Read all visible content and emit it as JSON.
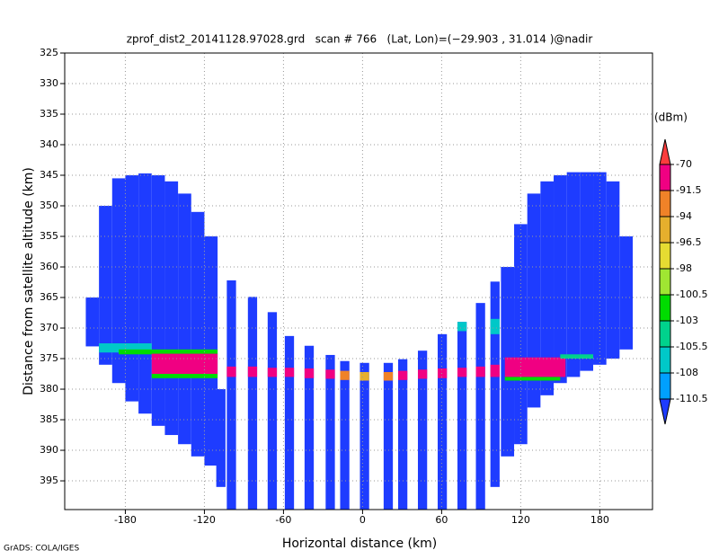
{
  "chart_data": {
    "type": "heatmap",
    "title": "zprof_dist2_20141128.97028.grd   scan # 766   (Lat, Lon)=(−29.903 , 31.014 )@nadir",
    "x_label": "Horizontal distance (km)",
    "y_label": "Distance from satellite altitude (km)",
    "footer": "GrADS: COLA/IGES",
    "xlim": [
      -226,
      220
    ],
    "xticks": [
      -180,
      -120,
      -60,
      0,
      60,
      120,
      180
    ],
    "ylim": [
      325,
      399.7
    ],
    "yticks": [
      325,
      330,
      335,
      340,
      345,
      350,
      355,
      360,
      365,
      370,
      375,
      380,
      385,
      390,
      395
    ],
    "grid": true,
    "colorbar": {
      "label": "(dBm)",
      "levels": [
        -70,
        -91.5,
        -94,
        -96.5,
        -98,
        -100.5,
        -103,
        -105.5,
        -108,
        -110.5
      ],
      "colors": [
        "#fa3c3c",
        "#f00082",
        "#f08228",
        "#e6af2d",
        "#e6dc32",
        "#a0e632",
        "#00dc00",
        "#00d28c",
        "#00c8c8",
        "#00a0ff",
        "#1e3cff"
      ]
    },
    "cells": [
      [
        -210,
        -200,
        365,
        373,
        -112
      ],
      [
        -200,
        -190,
        350,
        376,
        -112
      ],
      [
        -190,
        -180,
        345.5,
        379,
        -112
      ],
      [
        -180,
        -170,
        345,
        382,
        -112
      ],
      [
        -170,
        -160,
        344.7,
        384,
        -112
      ],
      [
        -160,
        -150,
        345,
        386,
        -112
      ],
      [
        -150,
        -140,
        346,
        387.5,
        -112
      ],
      [
        -140,
        -130,
        348,
        389,
        -112
      ],
      [
        -130,
        -120,
        351,
        391,
        -112
      ],
      [
        -120,
        -110,
        355,
        392.5,
        -112
      ],
      [
        -111,
        -104,
        380,
        396,
        -112
      ],
      [
        -103,
        -96,
        362.2,
        399.7,
        -112
      ],
      [
        -87,
        -80,
        364.9,
        399.7,
        -112
      ],
      [
        -72,
        -65,
        367.4,
        399.7,
        -112
      ],
      [
        -59,
        -52,
        371.3,
        399.7,
        -112
      ],
      [
        -44,
        -37,
        372.9,
        399.7,
        -112
      ],
      [
        -28,
        -21,
        374.4,
        399.7,
        -112
      ],
      [
        -17,
        -10,
        375.4,
        399.7,
        -112
      ],
      [
        -2,
        5,
        375.7,
        399.7,
        -112
      ],
      [
        16,
        23,
        375.7,
        399.7,
        -112
      ],
      [
        27,
        34,
        375.1,
        399.7,
        -112
      ],
      [
        42,
        49,
        373.7,
        399.7,
        -112
      ],
      [
        57,
        64,
        371,
        399.7,
        -112
      ],
      [
        72,
        79,
        369,
        399.7,
        -112
      ],
      [
        86,
        93,
        365.9,
        399.7,
        -112
      ],
      [
        97,
        104,
        362.4,
        396,
        -112
      ],
      [
        105,
        115,
        360,
        391,
        -112
      ],
      [
        115,
        125,
        353,
        389,
        -112
      ],
      [
        125,
        135,
        348,
        383,
        -112
      ],
      [
        135,
        145,
        346,
        381,
        -112
      ],
      [
        145,
        155,
        345,
        379,
        -112
      ],
      [
        155,
        165,
        344.5,
        378,
        -112
      ],
      [
        165,
        175,
        344.5,
        377,
        -112
      ],
      [
        175,
        185,
        344.5,
        376,
        -112
      ],
      [
        185,
        195,
        346,
        375,
        -112
      ],
      [
        195,
        205,
        355,
        373.5,
        -112
      ],
      [
        -200,
        -160,
        372.5,
        374,
        -107
      ],
      [
        -185,
        -110,
        373.5,
        374.3,
        -102
      ],
      [
        -160,
        -110,
        374.2,
        377.5,
        -85
      ],
      [
        -160,
        -110,
        377.5,
        378.2,
        -101
      ],
      [
        -103,
        -96,
        376.3,
        378,
        -88
      ],
      [
        -87,
        -80,
        376.3,
        378,
        -88
      ],
      [
        -72,
        -65,
        376.5,
        378,
        -88
      ],
      [
        -59,
        -52,
        376.5,
        378,
        -88
      ],
      [
        -44,
        -37,
        376.6,
        378.2,
        -88
      ],
      [
        -28,
        -21,
        376.8,
        378.3,
        -88
      ],
      [
        -17,
        -10,
        377,
        378.5,
        -92
      ],
      [
        -2,
        5,
        377.2,
        378.6,
        -95
      ],
      [
        16,
        23,
        377.2,
        378.6,
        -92
      ],
      [
        27,
        34,
        377,
        378.5,
        -88
      ],
      [
        42,
        49,
        376.8,
        378.3,
        -88
      ],
      [
        57,
        64,
        376.6,
        378.2,
        -88
      ],
      [
        72,
        79,
        376.5,
        378,
        -88
      ],
      [
        86,
        93,
        376.3,
        378,
        -88
      ],
      [
        97,
        104,
        376,
        378,
        -88
      ],
      [
        72,
        79,
        369,
        370.5,
        -107
      ],
      [
        97,
        104,
        368.5,
        371,
        -107
      ],
      [
        108,
        154,
        374.8,
        378,
        -85
      ],
      [
        108,
        150,
        378,
        378.6,
        -101
      ],
      [
        150,
        175,
        374.3,
        375,
        -104
      ]
    ]
  }
}
